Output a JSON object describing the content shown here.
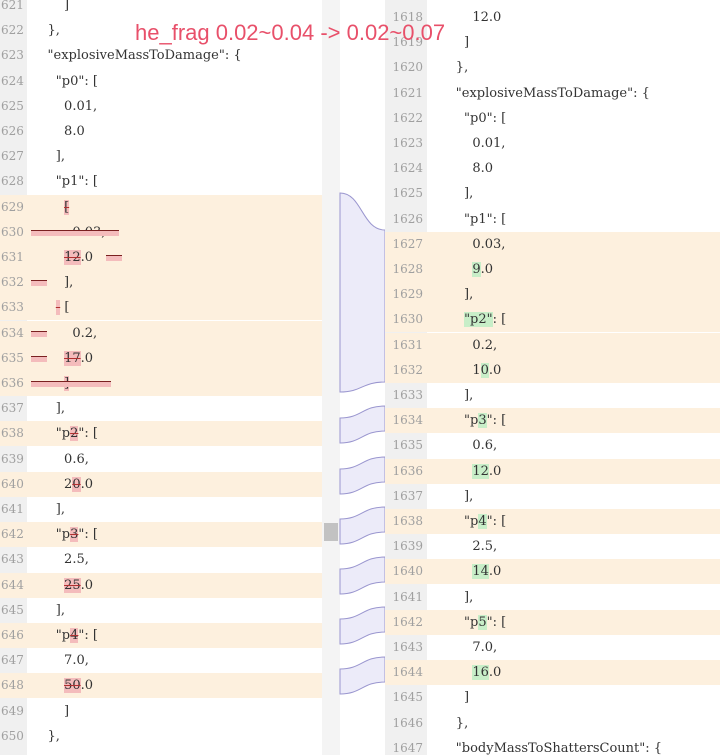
{
  "overlay_note": "he_frag 0.02~0.04 -> 0.02~0.07",
  "left": {
    "rows": [
      {
        "n": "621",
        "hl": false,
        "p": [
          {
            "t": "        ]"
          }
        ]
      },
      {
        "n": "622",
        "hl": false,
        "p": [
          {
            "t": "    },"
          }
        ]
      },
      {
        "n": "623",
        "hl": false,
        "p": [
          {
            "t": "    \"explosiveMassToDamage\": {"
          }
        ]
      },
      {
        "n": "624",
        "hl": false,
        "p": [
          {
            "t": "      \"p0\": ["
          }
        ]
      },
      {
        "n": "625",
        "hl": false,
        "p": [
          {
            "t": "        0.01,"
          }
        ]
      },
      {
        "n": "626",
        "hl": false,
        "p": [
          {
            "t": "        8.0"
          }
        ]
      },
      {
        "n": "627",
        "hl": false,
        "p": [
          {
            "t": "      ],"
          }
        ]
      },
      {
        "n": "628",
        "hl": false,
        "p": [
          {
            "t": "      \"p1\": ["
          }
        ]
      },
      {
        "n": "629",
        "hl": true,
        "p": [
          {
            "t": "        "
          },
          {
            "t": "[",
            "d": true
          }
        ]
      },
      {
        "n": "630",
        "hl": true,
        "p": [
          {
            "t": "          0.03,"
          }
        ]
      },
      {
        "n": "631",
        "hl": true,
        "p": [
          {
            "t": "        "
          },
          {
            "t": "12",
            "d": true
          },
          {
            "t": ".0"
          }
        ]
      },
      {
        "n": "632",
        "hl": true,
        "p": [
          {
            "t": "        ],"
          }
        ]
      },
      {
        "n": "633",
        "hl": true,
        "p": [
          {
            "t": "      "
          },
          {
            "t": "-",
            "d": true
          },
          {
            "t": " ["
          }
        ]
      },
      {
        "n": "634",
        "hl": true,
        "p": [
          {
            "t": "          0.2,"
          }
        ]
      },
      {
        "n": "635",
        "hl": true,
        "p": [
          {
            "t": "        "
          },
          {
            "t": "17",
            "d": true
          },
          {
            "t": ".0"
          }
        ]
      },
      {
        "n": "636",
        "hl": true,
        "p": [
          {
            "t": "        "
          },
          {
            "t": "]",
            "d": true
          }
        ]
      },
      {
        "n": "637",
        "hl": false,
        "p": [
          {
            "t": "      ],"
          }
        ]
      },
      {
        "n": "638",
        "hl": true,
        "p": [
          {
            "t": "      \"p"
          },
          {
            "t": "2",
            "d": true
          },
          {
            "t": "\": ["
          }
        ]
      },
      {
        "n": "639",
        "hl": false,
        "p": [
          {
            "t": "        0.6,"
          }
        ]
      },
      {
        "n": "640",
        "hl": true,
        "p": [
          {
            "t": "        2"
          },
          {
            "t": "0",
            "d": true
          },
          {
            "t": ".0"
          }
        ]
      },
      {
        "n": "641",
        "hl": false,
        "p": [
          {
            "t": "      ],"
          }
        ]
      },
      {
        "n": "642",
        "hl": true,
        "p": [
          {
            "t": "      \"p"
          },
          {
            "t": "3",
            "d": true
          },
          {
            "t": "\": ["
          }
        ]
      },
      {
        "n": "643",
        "hl": false,
        "p": [
          {
            "t": "        2.5,"
          }
        ]
      },
      {
        "n": "644",
        "hl": true,
        "p": [
          {
            "t": "        "
          },
          {
            "t": "25",
            "d": true
          },
          {
            "t": ".0"
          }
        ]
      },
      {
        "n": "645",
        "hl": false,
        "p": [
          {
            "t": "      ],"
          }
        ]
      },
      {
        "n": "646",
        "hl": true,
        "p": [
          {
            "t": "      \"p"
          },
          {
            "t": "4",
            "d": true
          },
          {
            "t": "\": ["
          }
        ]
      },
      {
        "n": "647",
        "hl": false,
        "p": [
          {
            "t": "        7.0,"
          }
        ]
      },
      {
        "n": "648",
        "hl": true,
        "p": [
          {
            "t": "        "
          },
          {
            "t": "50",
            "d": true
          },
          {
            "t": ".0"
          }
        ]
      },
      {
        "n": "649",
        "hl": false,
        "p": [
          {
            "t": "        ]"
          }
        ]
      },
      {
        "n": "650",
        "hl": false,
        "p": [
          {
            "t": "    },"
          }
        ]
      },
      {
        "n": "651",
        "hl": false,
        "p": [
          {
            "t": "    \"bodyMassToShattersCount\": {"
          }
        ]
      }
    ]
  },
  "right": {
    "rows": [
      {
        "n": "1618",
        "hl": false,
        "p": [
          {
            "t": "          12.0"
          }
        ]
      },
      {
        "n": "1619",
        "hl": false,
        "p": [
          {
            "t": "        ]"
          }
        ]
      },
      {
        "n": "1620",
        "hl": false,
        "p": [
          {
            "t": "      },"
          }
        ]
      },
      {
        "n": "1621",
        "hl": false,
        "p": [
          {
            "t": "      \"explosiveMassToDamage\": {"
          }
        ]
      },
      {
        "n": "1622",
        "hl": false,
        "p": [
          {
            "t": "        \"p0\": ["
          }
        ]
      },
      {
        "n": "1623",
        "hl": false,
        "p": [
          {
            "t": "          0.01,"
          }
        ]
      },
      {
        "n": "1624",
        "hl": false,
        "p": [
          {
            "t": "          8.0"
          }
        ]
      },
      {
        "n": "1625",
        "hl": false,
        "p": [
          {
            "t": "        ],"
          }
        ]
      },
      {
        "n": "1626",
        "hl": false,
        "p": [
          {
            "t": "        \"p1\": ["
          }
        ]
      },
      {
        "n": "1627",
        "hl": true,
        "p": [
          {
            "t": "          0.03,"
          }
        ]
      },
      {
        "n": "1628",
        "hl": true,
        "p": [
          {
            "t": "          "
          },
          {
            "t": "9",
            "i": true
          },
          {
            "t": ".0"
          }
        ]
      },
      {
        "n": "1629",
        "hl": true,
        "p": [
          {
            "t": "        ],"
          }
        ]
      },
      {
        "n": "1630",
        "hl": true,
        "p": [
          {
            "t": "        "
          },
          {
            "t": "\"p2\"",
            "i": true
          },
          {
            "t": ": ["
          }
        ]
      },
      {
        "n": "1631",
        "hl": true,
        "p": [
          {
            "t": "          0.2,"
          }
        ]
      },
      {
        "n": "1632",
        "hl": true,
        "p": [
          {
            "t": "          1"
          },
          {
            "t": "0",
            "i": true
          },
          {
            "t": ".0"
          }
        ]
      },
      {
        "n": "1633",
        "hl": false,
        "p": [
          {
            "t": "        ],"
          }
        ]
      },
      {
        "n": "1634",
        "hl": true,
        "p": [
          {
            "t": "        \"p"
          },
          {
            "t": "3",
            "i": true
          },
          {
            "t": "\": ["
          }
        ]
      },
      {
        "n": "1635",
        "hl": false,
        "p": [
          {
            "t": "          0.6,"
          }
        ]
      },
      {
        "n": "1636",
        "hl": true,
        "p": [
          {
            "t": "          "
          },
          {
            "t": "12",
            "i": true
          },
          {
            "t": ".0"
          }
        ]
      },
      {
        "n": "1637",
        "hl": false,
        "p": [
          {
            "t": "        ],"
          }
        ]
      },
      {
        "n": "1638",
        "hl": true,
        "p": [
          {
            "t": "        \"p"
          },
          {
            "t": "4",
            "i": true
          },
          {
            "t": "\": ["
          }
        ]
      },
      {
        "n": "1639",
        "hl": false,
        "p": [
          {
            "t": "          2.5,"
          }
        ]
      },
      {
        "n": "1640",
        "hl": true,
        "p": [
          {
            "t": "          "
          },
          {
            "t": "14",
            "i": true
          },
          {
            "t": ".0"
          }
        ]
      },
      {
        "n": "1641",
        "hl": false,
        "p": [
          {
            "t": "        ],"
          }
        ]
      },
      {
        "n": "1642",
        "hl": true,
        "p": [
          {
            "t": "        \"p"
          },
          {
            "t": "5",
            "i": true
          },
          {
            "t": "\": ["
          }
        ]
      },
      {
        "n": "1643",
        "hl": false,
        "p": [
          {
            "t": "          7.0,"
          }
        ]
      },
      {
        "n": "1644",
        "hl": true,
        "p": [
          {
            "t": "          "
          },
          {
            "t": "16",
            "i": true
          },
          {
            "t": ".0"
          }
        ]
      },
      {
        "n": "1645",
        "hl": false,
        "p": [
          {
            "t": "        ]"
          }
        ]
      },
      {
        "n": "1646",
        "hl": false,
        "p": [
          {
            "t": "      },"
          }
        ]
      },
      {
        "n": "1647",
        "hl": false,
        "p": [
          {
            "t": "      \"bodyMassToShattersCount\": {"
          }
        ]
      }
    ]
  }
}
